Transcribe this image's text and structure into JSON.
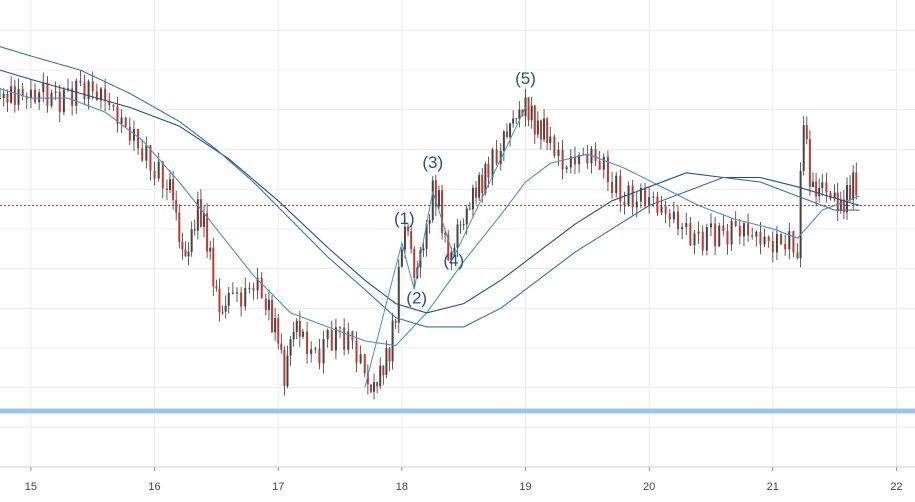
{
  "chart_data": {
    "type": "line",
    "title": "",
    "xlabel": "",
    "ylabel": "",
    "x_ticks": [
      "15",
      "16",
      "17",
      "18",
      "19",
      "20",
      "21",
      "22"
    ],
    "x_tick_values": [
      15,
      16,
      17,
      18,
      19,
      20,
      21,
      22
    ],
    "xlim": [
      14.75,
      22.15
    ],
    "ylim": [
      0,
      100
    ],
    "grid": true,
    "price_candles_close": [
      [
        14.75,
        79
      ],
      [
        14.9,
        80
      ],
      [
        15.0,
        79
      ],
      [
        15.1,
        80
      ],
      [
        15.2,
        78
      ],
      [
        15.3,
        79
      ],
      [
        15.4,
        81
      ],
      [
        15.5,
        80
      ],
      [
        15.6,
        79
      ],
      [
        15.7,
        75
      ],
      [
        15.8,
        72
      ],
      [
        15.9,
        68
      ],
      [
        16.0,
        64
      ],
      [
        16.1,
        61
      ],
      [
        16.15,
        58
      ],
      [
        16.2,
        48
      ],
      [
        16.25,
        44
      ],
      [
        16.3,
        49
      ],
      [
        16.35,
        55
      ],
      [
        16.4,
        52
      ],
      [
        16.45,
        45
      ],
      [
        16.5,
        37
      ],
      [
        16.55,
        33
      ],
      [
        16.6,
        38
      ],
      [
        16.7,
        36
      ],
      [
        16.8,
        40
      ],
      [
        16.9,
        36
      ],
      [
        16.95,
        31
      ],
      [
        17.0,
        28
      ],
      [
        17.05,
        18
      ],
      [
        17.1,
        27
      ],
      [
        17.15,
        30
      ],
      [
        17.2,
        27
      ],
      [
        17.3,
        23
      ],
      [
        17.4,
        27
      ],
      [
        17.5,
        28
      ],
      [
        17.6,
        26
      ],
      [
        17.7,
        20
      ],
      [
        17.75,
        17
      ],
      [
        17.8,
        19
      ],
      [
        17.85,
        22
      ],
      [
        17.9,
        25
      ],
      [
        17.95,
        33
      ],
      [
        18.0,
        48
      ],
      [
        18.05,
        51
      ],
      [
        18.1,
        40
      ],
      [
        18.15,
        45
      ],
      [
        18.2,
        50
      ],
      [
        18.25,
        59
      ],
      [
        18.3,
        57
      ],
      [
        18.35,
        48
      ],
      [
        18.4,
        45
      ],
      [
        18.45,
        52
      ],
      [
        18.5,
        53
      ],
      [
        18.55,
        57
      ],
      [
        18.6,
        60
      ],
      [
        18.65,
        61
      ],
      [
        18.7,
        64
      ],
      [
        18.8,
        69
      ],
      [
        18.85,
        71
      ],
      [
        18.9,
        74
      ],
      [
        18.95,
        75
      ],
      [
        19.0,
        77
      ],
      [
        19.05,
        75
      ],
      [
        19.1,
        72
      ],
      [
        19.15,
        73
      ],
      [
        19.2,
        70
      ],
      [
        19.3,
        64
      ],
      [
        19.4,
        66
      ],
      [
        19.5,
        67
      ],
      [
        19.6,
        66
      ],
      [
        19.7,
        61
      ],
      [
        19.8,
        58
      ],
      [
        19.9,
        58
      ],
      [
        20.0,
        58
      ],
      [
        20.1,
        55
      ],
      [
        20.2,
        53
      ],
      [
        20.3,
        50
      ],
      [
        20.4,
        48
      ],
      [
        20.5,
        50
      ],
      [
        20.6,
        49
      ],
      [
        20.7,
        51
      ],
      [
        20.8,
        50
      ],
      [
        20.9,
        49
      ],
      [
        21.0,
        48
      ],
      [
        21.1,
        49
      ],
      [
        21.2,
        47
      ],
      [
        21.25,
        75
      ],
      [
        21.3,
        61
      ],
      [
        21.35,
        58
      ],
      [
        21.4,
        60
      ],
      [
        21.5,
        57
      ],
      [
        21.55,
        55
      ],
      [
        21.6,
        58
      ],
      [
        21.65,
        61
      ],
      [
        21.7,
        60
      ]
    ],
    "series": [
      {
        "color": "#4a90c8",
        "values": [
          [
            14.75,
            81
          ],
          [
            15.0,
            79
          ],
          [
            15.3,
            79
          ],
          [
            15.6,
            76
          ],
          [
            15.9,
            70
          ],
          [
            16.2,
            61
          ],
          [
            16.5,
            51
          ],
          [
            16.8,
            41
          ],
          [
            17.1,
            33
          ],
          [
            17.4,
            30
          ],
          [
            17.7,
            27
          ],
          [
            17.95,
            26
          ],
          [
            18.2,
            33
          ],
          [
            18.5,
            44
          ],
          [
            18.8,
            54
          ],
          [
            19.0,
            61
          ],
          [
            19.2,
            65
          ],
          [
            19.5,
            67
          ],
          [
            19.8,
            64
          ],
          [
            20.1,
            60
          ],
          [
            20.4,
            56
          ],
          [
            20.7,
            53
          ],
          [
            21.0,
            51
          ],
          [
            21.2,
            49
          ],
          [
            21.4,
            55
          ],
          [
            21.7,
            58
          ]
        ]
      },
      {
        "color": "#1f4e8c",
        "values": [
          [
            14.75,
            85
          ],
          [
            15.0,
            83
          ],
          [
            15.4,
            80
          ],
          [
            15.8,
            77
          ],
          [
            16.2,
            73
          ],
          [
            16.6,
            66
          ],
          [
            17.0,
            57
          ],
          [
            17.4,
            47
          ],
          [
            17.7,
            40
          ],
          [
            17.95,
            35
          ],
          [
            18.2,
            33
          ],
          [
            18.5,
            35
          ],
          [
            18.8,
            40
          ],
          [
            19.1,
            46
          ],
          [
            19.4,
            52
          ],
          [
            19.7,
            57
          ],
          [
            20.0,
            60
          ],
          [
            20.3,
            63
          ],
          [
            20.6,
            62
          ],
          [
            20.9,
            62
          ],
          [
            21.2,
            60
          ],
          [
            21.45,
            58
          ],
          [
            21.7,
            56
          ]
        ]
      },
      {
        "color": "#3a6fb0",
        "values": [
          [
            14.75,
            90
          ],
          [
            15.0,
            88
          ],
          [
            15.4,
            85
          ],
          [
            15.8,
            80
          ],
          [
            16.2,
            74
          ],
          [
            16.5,
            68
          ],
          [
            16.8,
            61
          ],
          [
            17.1,
            53
          ],
          [
            17.4,
            45
          ],
          [
            17.7,
            38
          ],
          [
            17.95,
            32
          ],
          [
            18.2,
            30
          ],
          [
            18.5,
            30
          ],
          [
            18.8,
            34
          ],
          [
            19.1,
            40
          ],
          [
            19.4,
            46
          ],
          [
            19.7,
            51
          ],
          [
            20.0,
            56
          ],
          [
            20.3,
            59
          ],
          [
            20.6,
            62
          ],
          [
            20.9,
            61
          ],
          [
            21.2,
            58
          ],
          [
            21.5,
            55
          ],
          [
            21.7,
            55
          ]
        ]
      }
    ],
    "wave_path": {
      "color": "#4a90c8",
      "values": [
        [
          17.7,
          17
        ],
        [
          18.0,
          48
        ],
        [
          18.1,
          38
        ],
        [
          18.25,
          59
        ],
        [
          18.42,
          45
        ],
        [
          19.0,
          77
        ]
      ]
    },
    "wave_labels": [
      {
        "text": "(1)",
        "x": 18.02,
        "y": 52
      },
      {
        "text": "(2)",
        "x": 18.12,
        "y": 35
      },
      {
        "text": "(3)",
        "x": 18.25,
        "y": 64
      },
      {
        "text": "(4)",
        "x": 18.42,
        "y": 43
      },
      {
        "text": "(5)",
        "x": 19.0,
        "y": 82
      }
    ],
    "reference_lines": [
      {
        "y": 56,
        "color": "#c0392b",
        "style": "dotted"
      },
      {
        "y": 12,
        "color": "#9cc5ea",
        "style": "solid"
      }
    ]
  }
}
